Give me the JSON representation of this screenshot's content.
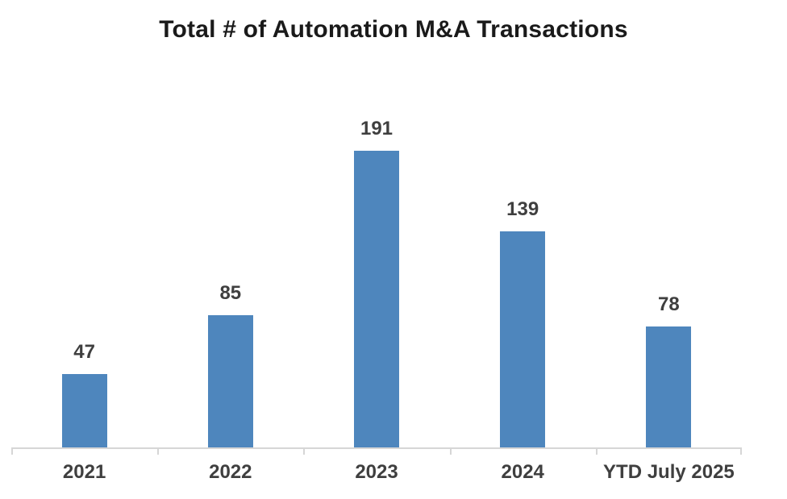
{
  "chart_data": {
    "type": "bar",
    "title": "Total # of Automation M&A Transactions",
    "categories": [
      "2021",
      "2022",
      "2023",
      "2024",
      "YTD July 2025"
    ],
    "values": [
      47,
      85,
      191,
      139,
      78
    ],
    "xlabel": "",
    "ylabel": "",
    "ylim": [
      0,
      200
    ],
    "grid": false,
    "legend": "none",
    "data_labels": true,
    "colors": {
      "bar": "#4E86BD",
      "title": "#1A1A1A",
      "label": "#3F3F3F",
      "axis": "#D6D6D6",
      "background": "#FFFFFF"
    }
  }
}
